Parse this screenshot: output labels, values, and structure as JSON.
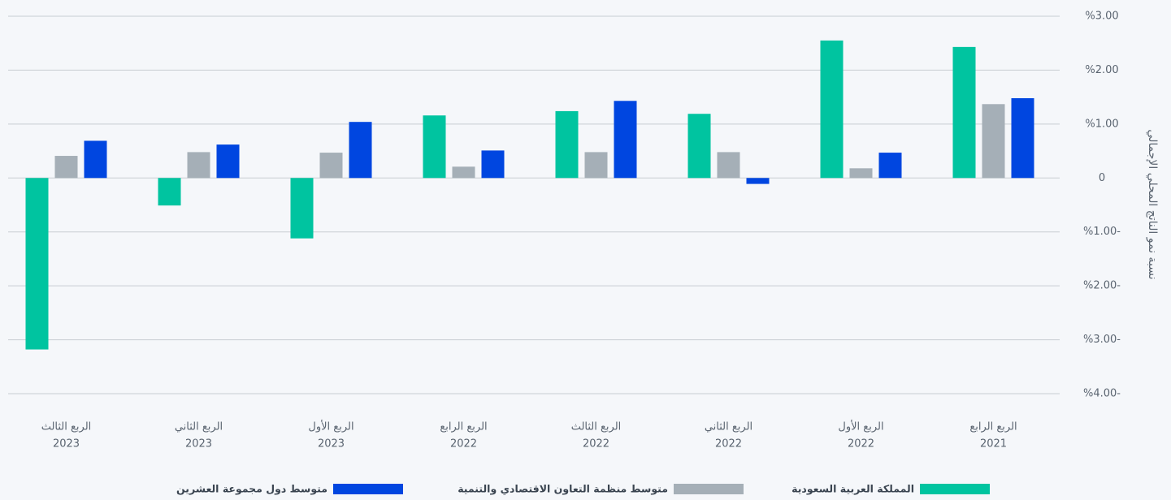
{
  "chart_data": {
    "type": "bar",
    "y_axis_label": "نسبة نمو الناتج المحلي الإجمالي",
    "categories": [
      [
        "الربع الرابع",
        "2021"
      ],
      [
        "الربع الأول",
        "2022"
      ],
      [
        "الربع الثاني",
        "2022"
      ],
      [
        "الربع الثالث",
        "2022"
      ],
      [
        "الربع الرابع",
        "2022"
      ],
      [
        "الربع الأول",
        "2023"
      ],
      [
        "الربع الثاني",
        "2023"
      ],
      [
        "الربع الثالث",
        "2023"
      ]
    ],
    "series": [
      {
        "name": "المملكة العربية السعودية",
        "color": "#00c4a0",
        "values": [
          2.43,
          2.55,
          1.19,
          1.24,
          1.16,
          -1.12,
          -0.51,
          -3.18
        ]
      },
      {
        "name": "متوسط منظمة التعاون الاقتصادي والتنمية",
        "color": "#a5afb7",
        "values": [
          1.37,
          0.18,
          0.48,
          0.48,
          0.21,
          0.47,
          0.48,
          0.41
        ]
      },
      {
        "name": "متوسط دول مجموعة العشرين",
        "color": "#0046e0",
        "values": [
          1.48,
          0.47,
          -0.11,
          1.43,
          0.51,
          1.04,
          0.62,
          0.69
        ]
      }
    ],
    "ylim": [
      -4,
      3
    ],
    "yticks": [
      {
        "value": 3,
        "label": "%3.00"
      },
      {
        "value": 2,
        "label": "%2.00"
      },
      {
        "value": 1,
        "label": "%1.00"
      },
      0,
      {
        "value": -1,
        "label": "%1.00-"
      },
      {
        "value": -2,
        "label": "%2.00-"
      },
      {
        "value": -3,
        "label": "%3.00-"
      },
      {
        "value": -4,
        "label": "%4.00-"
      }
    ],
    "grid": true
  }
}
